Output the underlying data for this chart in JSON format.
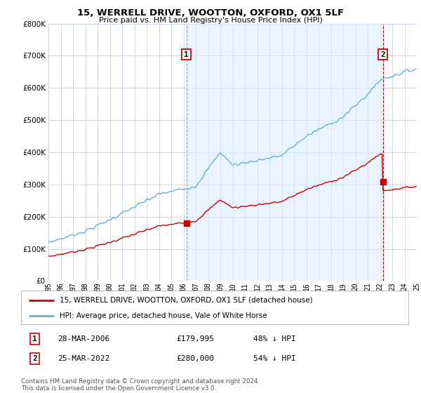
{
  "title": "15, WERRELL DRIVE, WOOTTON, OXFORD, OX1 5LF",
  "subtitle": "Price paid vs. HM Land Registry's House Price Index (HPI)",
  "legend_line1": "15, WERRELL DRIVE, WOOTTON, OXFORD, OX1 5LF (detached house)",
  "legend_line2": "HPI: Average price, detached house, Vale of White Horse",
  "transaction1_date": "28-MAR-2006",
  "transaction1_price": "£179,995",
  "transaction1_hpi": "48% ↓ HPI",
  "transaction2_date": "25-MAR-2022",
  "transaction2_price": "£280,000",
  "transaction2_hpi": "54% ↓ HPI",
  "footer": "Contains HM Land Registry data © Crown copyright and database right 2024.\nThis data is licensed under the Open Government Licence v3.0.",
  "red_color": "#cc0000",
  "blue_color": "#6aaed6",
  "blue_fill": "#ddeeff",
  "grid_color": "#c8d8e8",
  "background_color": "#ffffff",
  "ylim": [
    0,
    800000
  ],
  "yticks": [
    0,
    100000,
    200000,
    300000,
    400000,
    500000,
    600000,
    700000,
    800000
  ],
  "transaction1_year": 2006.23,
  "transaction2_year": 2022.23,
  "transaction1_value_red": 179995,
  "transaction2_value_red": 280000
}
